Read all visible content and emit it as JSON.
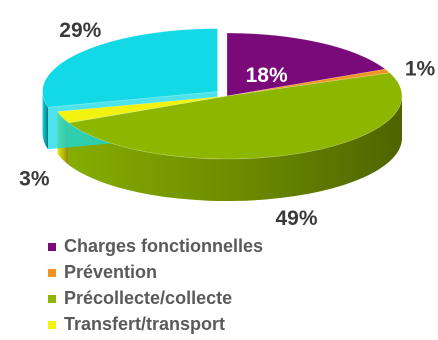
{
  "chart_data": {
    "type": "pie",
    "title": "",
    "categories": [
      "Charges fonctionnelles",
      "Prévention",
      "Précollecte/collecte",
      "Transfert/transport",
      ""
    ],
    "values": [
      18,
      1,
      49,
      3,
      29
    ],
    "data_labels": [
      "18%",
      "1%",
      "49%",
      "3%",
      "29%"
    ],
    "colors": [
      "#7a0a7a",
      "#f39322",
      "#8db600",
      "#f2f20f",
      "#13d9e6"
    ],
    "style": "3d-exploded",
    "legend_position": "bottom-left",
    "legend_entries": [
      {
        "label": "Charges fonctionnelles",
        "color": "#7a0a7a"
      },
      {
        "label": "Prévention",
        "color": "#f39322"
      },
      {
        "label": "Précollecte/collecte",
        "color": "#8db600"
      },
      {
        "label": "Transfert/transport",
        "color": "#f2f20f"
      }
    ]
  }
}
